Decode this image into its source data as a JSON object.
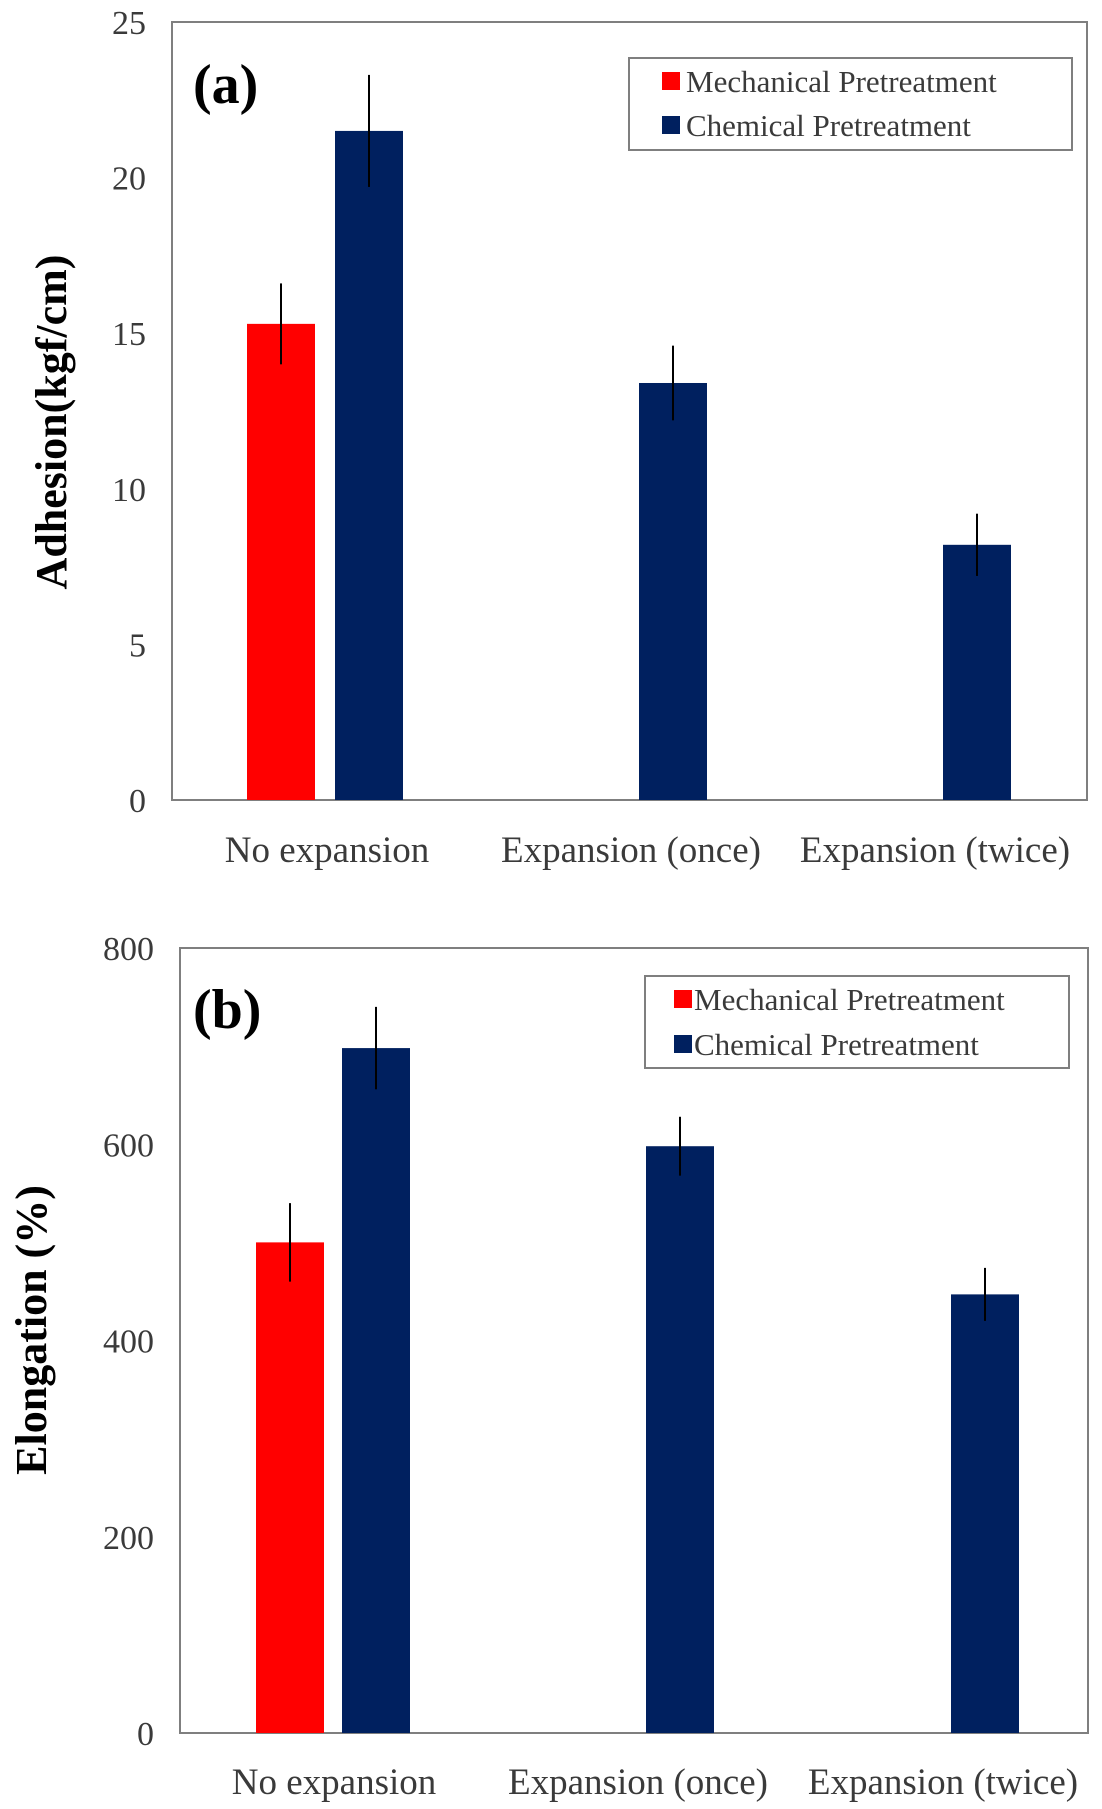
{
  "chart_data": [
    {
      "type": "bar",
      "panel_label": "(a)",
      "title": "",
      "xlabel": "",
      "ylabel": "Adhesion(kgf/cm)",
      "categories": [
        "No expansion",
        "Expansion (once)",
        "Expansion (twice)"
      ],
      "series": [
        {
          "name": "Mechanical Pretreatment",
          "color": "#ff0000",
          "values": [
            15.3,
            null,
            null
          ],
          "errors": [
            1.3,
            null,
            null
          ]
        },
        {
          "name": "Chemical Pretreatment",
          "color": "#00205f",
          "values": [
            21.5,
            13.4,
            8.2
          ],
          "errors": [
            1.8,
            1.2,
            1.0
          ]
        }
      ],
      "ylim": [
        0,
        25
      ],
      "yticks": [
        "0",
        "5",
        "10",
        "15",
        "20",
        "25"
      ],
      "legend_position": "top-right",
      "grid": false
    },
    {
      "type": "bar",
      "panel_label": "(b)",
      "title": "",
      "xlabel": "",
      "ylabel": "Elongation (%)",
      "categories": [
        "No expansion",
        "Expansion (once)",
        "Expansion (twice)"
      ],
      "series": [
        {
          "name": "Mechanical Pretreatment",
          "color": "#ff0000",
          "values": [
            500,
            null,
            null
          ],
          "errors": [
            40,
            null,
            null
          ]
        },
        {
          "name": "Chemical Pretreatment",
          "color": "#00205f",
          "values": [
            698,
            598,
            447
          ],
          "errors": [
            42,
            30,
            27
          ]
        }
      ],
      "ylim": [
        0,
        800
      ],
      "yticks": [
        "0",
        "200",
        "400",
        "600",
        "800"
      ],
      "legend_position": "top-right",
      "grid": false
    }
  ]
}
